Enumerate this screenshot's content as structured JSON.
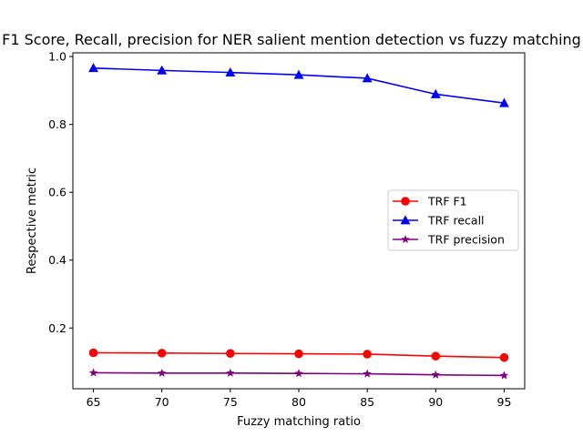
{
  "chart_data": {
    "type": "line",
    "title": "F1 Score, Recall, precision for NER salient mention detection vs fuzzy matching",
    "xlabel": "Fuzzy matching ratio",
    "ylabel": "Respective metric",
    "x": [
      65,
      70,
      75,
      80,
      85,
      90,
      95
    ],
    "x_ticks": [
      "65",
      "70",
      "75",
      "80",
      "85",
      "90",
      "95"
    ],
    "y_ticks": [
      "0.2",
      "0.4",
      "0.6",
      "0.8",
      "1.0"
    ],
    "xlim": [
      63.5,
      96.5
    ],
    "ylim": [
      0.021,
      1.011
    ],
    "grid": false,
    "legend_position": "center-right",
    "series": [
      {
        "name": "TRF F1",
        "color": "#ff0000",
        "marker": "circle",
        "values": [
          0.127,
          0.126,
          0.125,
          0.124,
          0.123,
          0.117,
          0.113
        ]
      },
      {
        "name": "TRF recall",
        "color": "#0000ff",
        "marker": "triangle",
        "values": [
          0.966,
          0.959,
          0.953,
          0.946,
          0.936,
          0.889,
          0.863
        ]
      },
      {
        "name": "TRF precision",
        "color": "#800080",
        "marker": "star",
        "values": [
          0.068,
          0.067,
          0.067,
          0.066,
          0.065,
          0.062,
          0.06
        ]
      }
    ]
  }
}
